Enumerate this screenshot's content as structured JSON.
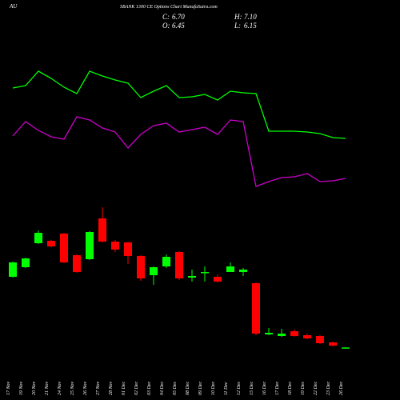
{
  "header": {
    "symbol": "AU",
    "title": "SBANK 1300 CE Options Chart MunafaSutra.com",
    "readouts": [
      {
        "label": "C:",
        "value": "6.70"
      },
      {
        "label": "H:",
        "value": "7.10"
      },
      {
        "label": "O:",
        "value": "6.45"
      },
      {
        "label": "L:",
        "value": "6.15"
      }
    ]
  },
  "chart_data": {
    "type": "candlestick",
    "categories": [
      "17 Nov",
      "19 Nov",
      "20 Nov",
      "21 Nov",
      "24 Nov",
      "25 Nov",
      "26 Nov",
      "27 Nov",
      "28 Nov",
      "01 Dec",
      "02 Dec",
      "03 Dec",
      "04 Dec",
      "05 Dec",
      "08 Dec",
      "09 Dec",
      "10 Dec",
      "11 Dec",
      "12 Dec",
      "15 Dec",
      "16 Dec",
      "17 Dec",
      "18 Dec",
      "19 Dec",
      "22 Dec",
      "23 Dec",
      "26 Dec"
    ],
    "open": [
      360,
      408,
      528,
      540,
      576,
      468,
      448,
      652,
      536,
      532,
      464,
      368,
      412,
      484,
      356,
      380,
      360,
      384,
      384,
      328,
      72,
      64,
      88,
      68,
      64,
      32,
      6.45
    ],
    "high": [
      436,
      456,
      592,
      544,
      580,
      472,
      588,
      708,
      544,
      536,
      468,
      412,
      472,
      488,
      396,
      412,
      372,
      432,
      404,
      332,
      104,
      100,
      96,
      76,
      68,
      36,
      7.1
    ],
    "low": [
      356,
      404,
      524,
      508,
      428,
      380,
      444,
      532,
      484,
      424,
      340,
      320,
      404,
      344,
      336,
      336,
      332,
      384,
      364,
      68,
      68,
      60,
      60,
      48,
      24,
      12,
      6.15
    ],
    "close": [
      432,
      452,
      580,
      512,
      432,
      384,
      584,
      536,
      496,
      464,
      352,
      408,
      460,
      352,
      364,
      384,
      336,
      412,
      396,
      76,
      80,
      76,
      64,
      52,
      28,
      16,
      6.7
    ],
    "up_color": "#00ff00",
    "down_color": "#ff0000",
    "ylim": [
      0,
      720
    ],
    "y2lim": [
      0,
      100
    ],
    "series": [
      {
        "color": "#00ff00",
        "axis": "y2",
        "values": [
          56,
          57.2,
          64.4,
          60.8,
          56.4,
          53.2,
          64.4,
          62,
          60,
          58.4,
          51.2,
          54.4,
          57.2,
          51.2,
          51.6,
          52.8,
          50,
          54.4,
          53.6,
          53.2,
          34.4,
          34.4,
          34.4,
          34,
          33.2,
          31.2,
          30.8
        ]
      },
      {
        "color": "#cc00cc",
        "axis": "y2",
        "values": [
          32,
          39.2,
          34.8,
          31.6,
          30.4,
          41.6,
          40,
          36,
          34,
          26,
          32.8,
          37.2,
          38.4,
          34,
          35.2,
          36.4,
          32.8,
          40,
          39.2,
          6.8,
          9.2,
          11.2,
          11.6,
          13.2,
          9.2,
          9.6,
          10.8
        ]
      }
    ]
  }
}
